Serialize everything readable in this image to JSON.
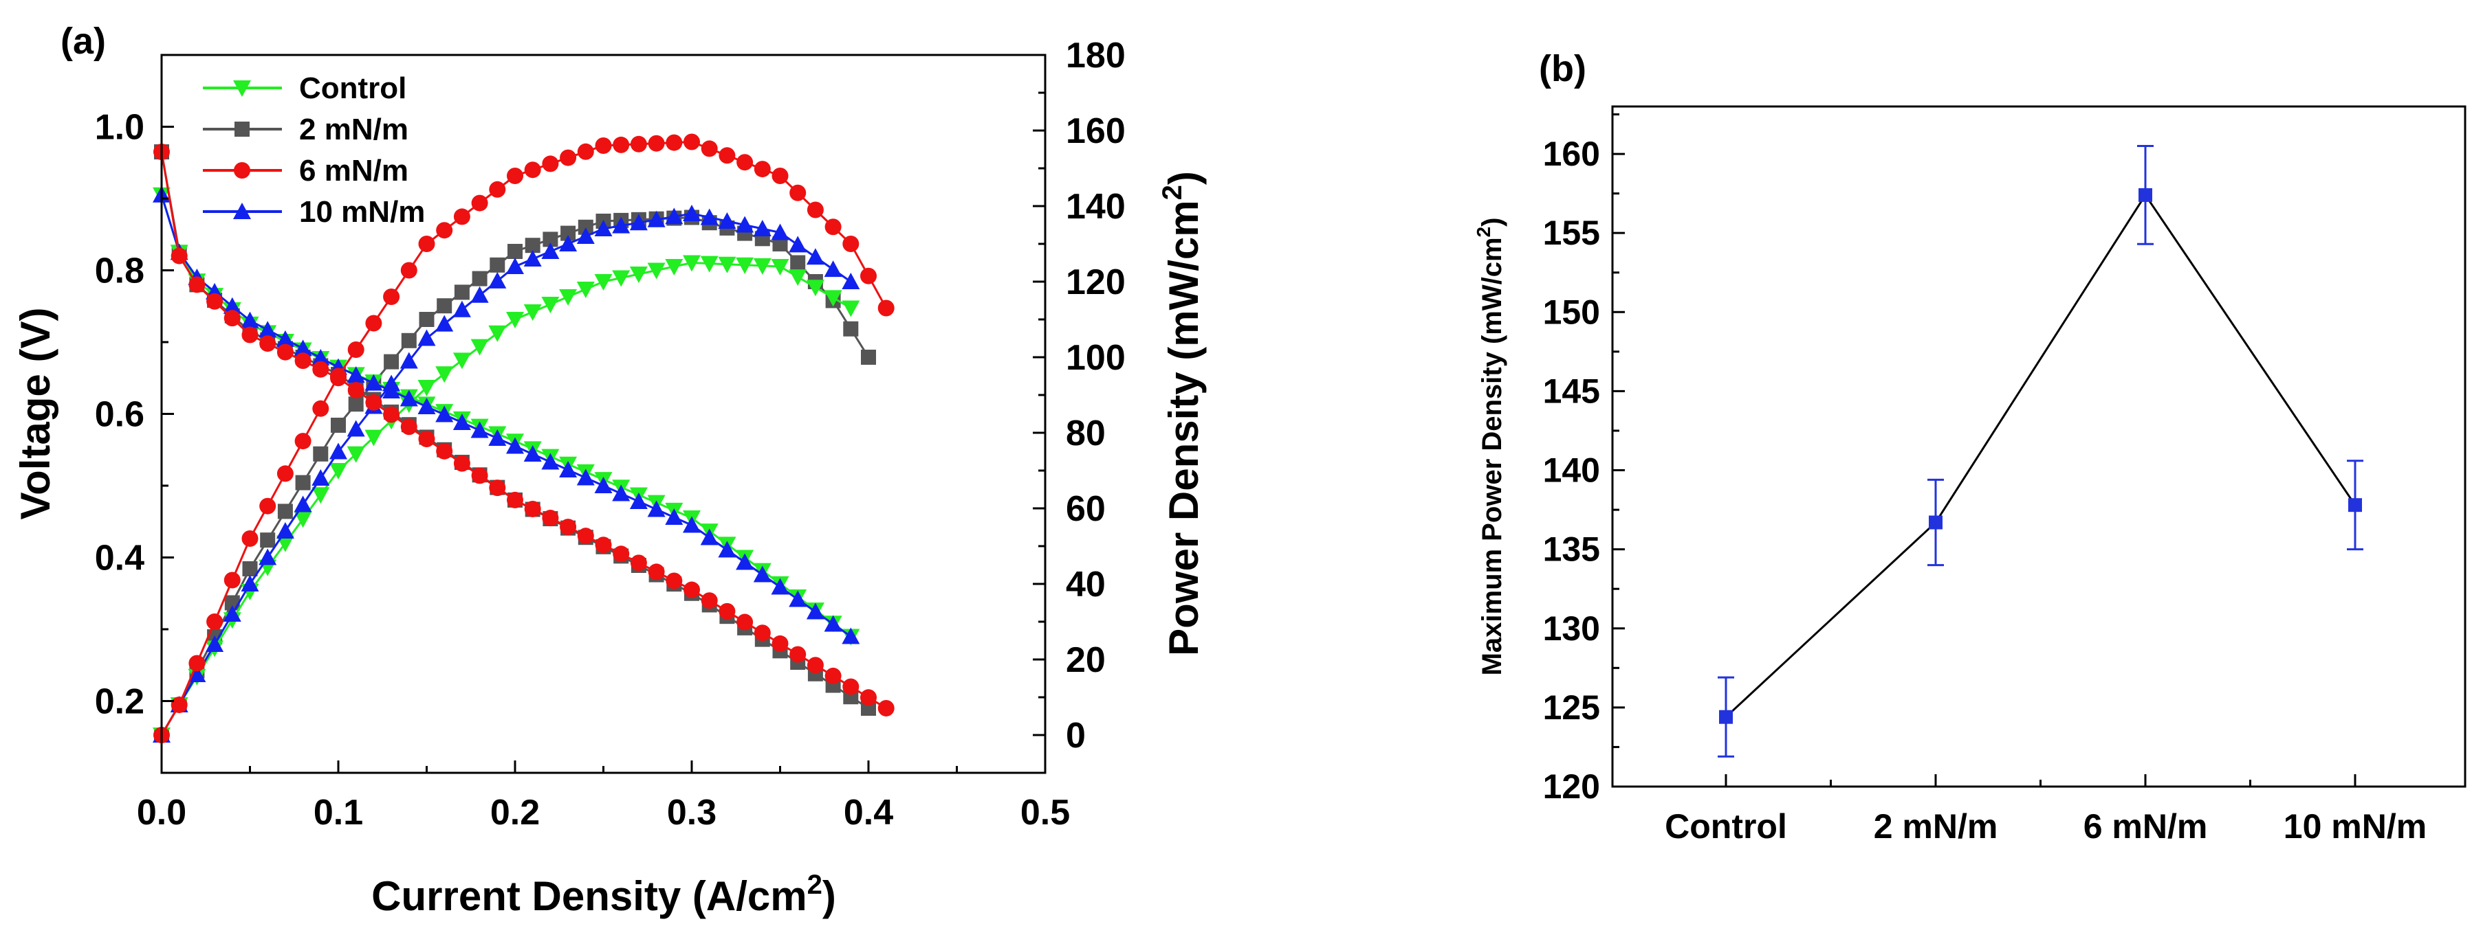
{
  "chart_data": [
    {
      "panel_label": "(a)",
      "type": "line",
      "xlabel": "Current Density (A/cm",
      "xlabel_sup": "2",
      "xlabel_end": ")",
      "ylabel_left": "Voltage (V)",
      "ylabel_right": "Power Density (mW/cm",
      "ylabel_right_sup": "2",
      "ylabel_right_end": ")",
      "xlim": [
        0,
        0.5
      ],
      "ylim_left": [
        0.1,
        1.1
      ],
      "ylim_right": [
        -10,
        180
      ],
      "x_ticks": [
        "0.0",
        "0.1",
        "0.2",
        "0.3",
        "0.4",
        "0.5"
      ],
      "y_left_ticks": [
        "0.2",
        "0.4",
        "0.6",
        "0.8",
        "1.0"
      ],
      "y_right_ticks": [
        "0",
        "20",
        "40",
        "60",
        "80",
        "100",
        "120",
        "140",
        "160",
        "180"
      ],
      "legend_position": "top-left",
      "series": [
        {
          "name": "Control",
          "color": "#22ee22",
          "marker": "triangle-down",
          "x_max": 0.39,
          "voltage": [
            [
              0,
              0.905
            ],
            [
              0.01,
              0.825
            ],
            [
              0.02,
              0.785
            ],
            [
              0.05,
              0.725
            ],
            [
              0.1,
              0.665
            ],
            [
              0.2,
              0.562
            ],
            [
              0.3,
              0.455
            ],
            [
              0.39,
              0.29
            ]
          ],
          "power": [
            [
              0,
              0
            ],
            [
              0.01,
              8
            ],
            [
              0.05,
              38
            ],
            [
              0.1,
              70
            ],
            [
              0.15,
              92
            ],
            [
              0.2,
              110
            ],
            [
              0.25,
              120
            ],
            [
              0.3,
              125
            ],
            [
              0.35,
              124
            ],
            [
              0.39,
              113
            ]
          ]
        },
        {
          "name": "2 mN/m",
          "color": "#555555",
          "marker": "square",
          "x_max": 0.4,
          "voltage": [
            [
              0,
              0.965
            ],
            [
              0.01,
              0.825
            ],
            [
              0.02,
              0.78
            ],
            [
              0.05,
              0.715
            ],
            [
              0.1,
              0.655
            ],
            [
              0.2,
              0.48
            ],
            [
              0.3,
              0.35
            ],
            [
              0.4,
              0.19
            ]
          ],
          "power": [
            [
              0,
              0
            ],
            [
              0.01,
              8
            ],
            [
              0.05,
              44
            ],
            [
              0.1,
              82
            ],
            [
              0.15,
              110
            ],
            [
              0.2,
              128
            ],
            [
              0.25,
              136
            ],
            [
              0.3,
              137
            ],
            [
              0.35,
              130
            ],
            [
              0.38,
              115
            ],
            [
              0.4,
              100
            ]
          ]
        },
        {
          "name": "6 mN/m",
          "color": "#ee1111",
          "marker": "circle",
          "x_max": 0.41,
          "voltage": [
            [
              0,
              0.965
            ],
            [
              0.01,
              0.82
            ],
            [
              0.02,
              0.78
            ],
            [
              0.05,
              0.71
            ],
            [
              0.1,
              0.65
            ],
            [
              0.2,
              0.48
            ],
            [
              0.3,
              0.355
            ],
            [
              0.41,
              0.19
            ]
          ],
          "power": [
            [
              0,
              0
            ],
            [
              0.01,
              8
            ],
            [
              0.05,
              52
            ],
            [
              0.1,
              95
            ],
            [
              0.15,
              130
            ],
            [
              0.2,
              148
            ],
            [
              0.25,
              156
            ],
            [
              0.3,
              157
            ],
            [
              0.35,
              148
            ],
            [
              0.39,
              130
            ],
            [
              0.41,
              113
            ]
          ]
        },
        {
          "name": "10 mN/m",
          "color": "#1122ee",
          "marker": "triangle-up",
          "x_max": 0.39,
          "voltage": [
            [
              0,
              0.905
            ],
            [
              0.01,
              0.825
            ],
            [
              0.02,
              0.79
            ],
            [
              0.05,
              0.73
            ],
            [
              0.1,
              0.665
            ],
            [
              0.2,
              0.555
            ],
            [
              0.3,
              0.445
            ],
            [
              0.39,
              0.29
            ]
          ],
          "power": [
            [
              0,
              0
            ],
            [
              0.01,
              8
            ],
            [
              0.05,
              40
            ],
            [
              0.1,
              75
            ],
            [
              0.15,
              105
            ],
            [
              0.2,
              124
            ],
            [
              0.25,
              134
            ],
            [
              0.3,
              138
            ],
            [
              0.35,
              133
            ],
            [
              0.39,
              120
            ]
          ]
        }
      ]
    },
    {
      "panel_label": "(b)",
      "type": "line",
      "ylabel": "Maximum Power Density (mW/cm",
      "ylabel_sup": "2",
      "ylabel_end": ")",
      "categories": [
        "Control",
        "2 mN/m",
        "6 mN/m",
        "10 mN/m"
      ],
      "values": [
        124.4,
        136.7,
        157.4,
        137.8
      ],
      "errors": [
        2.5,
        2.7,
        3.1,
        2.8
      ],
      "ylim": [
        120,
        163
      ],
      "y_ticks": [
        "120",
        "125",
        "130",
        "135",
        "140",
        "145",
        "150",
        "155",
        "160"
      ],
      "marker_color": "#2233dd",
      "line_color": "#000000"
    }
  ]
}
